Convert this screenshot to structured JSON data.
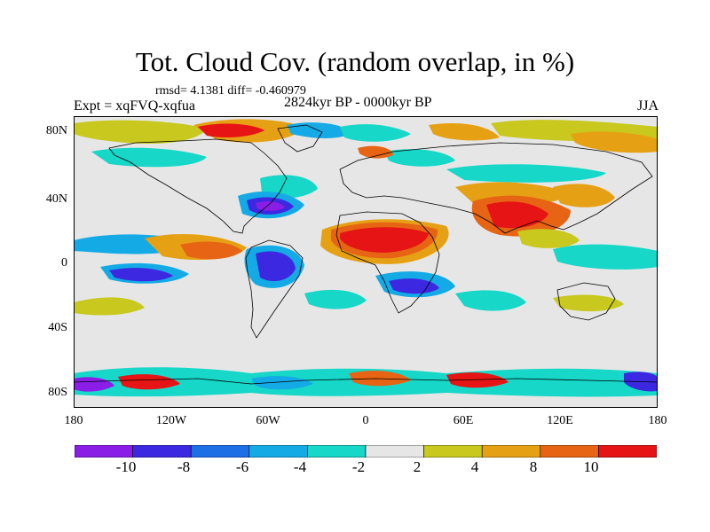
{
  "title": "Tot. Cloud Cov. (random overlap, in %)",
  "stats": "rmsd= 4.1381 diff= -0.460979",
  "experiment": "Expt = xqFVQ-xqfua",
  "period": "2824kyr BP - 0000kyr BP",
  "season": "JJA",
  "map": {
    "projection": "cylindrical equidistant",
    "lon_range": [
      -180,
      180
    ],
    "lat_range": [
      -90,
      90
    ],
    "y_ticks": [
      "80N",
      "40N",
      "0",
      "40S",
      "80S"
    ],
    "x_ticks": [
      "180",
      "120W",
      "60W",
      "0",
      "60E",
      "120E",
      "180"
    ]
  },
  "colorbar": {
    "labels": [
      "-10",
      "-8",
      "-6",
      "-4",
      "-2",
      "2",
      "4",
      "8",
      "10"
    ],
    "colors": [
      "#8a1ee6",
      "#3c28e0",
      "#1e6ee6",
      "#14aae6",
      "#16d7c8",
      "#e6e6e6",
      "#c8c81e",
      "#e6a014",
      "#e66414",
      "#e61414"
    ]
  }
}
